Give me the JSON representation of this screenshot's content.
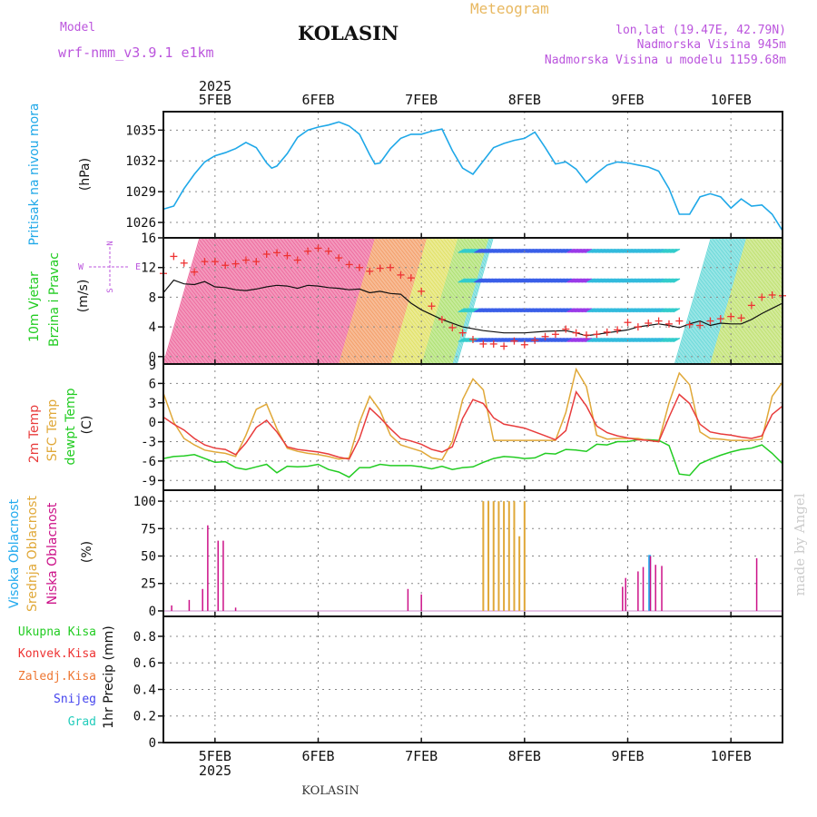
{
  "header": {
    "model_label": "Model",
    "model_value": "wrf-nmm_v3.9.1 e1km",
    "station": "KOLASIN",
    "meteogram": "Meteogram",
    "coords": "lon,lat (19.47E, 42.79N)",
    "elevation": "Nadmorska Visina 945m",
    "model_elevation": "Nadmorska Visina u modelu 1159.68m",
    "watermark": "made by Angel",
    "footer": "KOLASIN"
  },
  "colors": {
    "pressure": "#1fa8e8",
    "wind_speed": "#111111",
    "gust": "#ee3333",
    "temp_2m": "#e83c3c",
    "temp_sfc": "#e0a838",
    "dewpoint": "#22cc22",
    "high_cloud": "#22aaee",
    "mid_cloud": "#e0a838",
    "low_cloud": "#cc1188",
    "grid": "#888888",
    "label_purple": "#bb55dd",
    "label_orange": "#e8a838"
  },
  "time_axis": {
    "year": "2025",
    "labels": [
      "5FEB",
      "6FEB",
      "7FEB",
      "8FEB",
      "9FEB",
      "10FEB"
    ],
    "start_day": 4.5,
    "end_day": 10.5
  },
  "chart_data": [
    {
      "type": "line",
      "panel": "pressure",
      "ylabel": [
        "Pritisak na nivou mora",
        "(hPa)"
      ],
      "yticks": [
        1026,
        1029,
        1032,
        1035
      ],
      "ylim": [
        1024.5,
        1036.8
      ],
      "x": [
        4.5,
        4.6,
        4.7,
        4.8,
        4.9,
        5.0,
        5.1,
        5.2,
        5.3,
        5.4,
        5.5,
        5.55,
        5.6,
        5.7,
        5.8,
        5.9,
        6.0,
        6.1,
        6.2,
        6.3,
        6.4,
        6.5,
        6.55,
        6.6,
        6.7,
        6.8,
        6.9,
        7.0,
        7.1,
        7.2,
        7.3,
        7.4,
        7.5,
        7.6,
        7.7,
        7.8,
        7.9,
        8.0,
        8.1,
        8.2,
        8.3,
        8.4,
        8.5,
        8.6,
        8.7,
        8.8,
        8.9,
        9.0,
        9.1,
        9.2,
        9.3,
        9.4,
        9.5,
        9.6,
        9.7,
        9.8,
        9.9,
        10.0,
        10.1,
        10.2,
        10.3,
        10.4,
        10.5
      ],
      "y": [
        1027.3,
        1027.6,
        1029.3,
        1030.7,
        1031.9,
        1032.5,
        1032.8,
        1033.2,
        1033.8,
        1033.3,
        1031.8,
        1031.3,
        1031.5,
        1032.7,
        1034.3,
        1035.0,
        1035.3,
        1035.5,
        1035.8,
        1035.4,
        1034.6,
        1032.6,
        1031.7,
        1031.8,
        1033.2,
        1034.2,
        1034.6,
        1034.6,
        1034.9,
        1035.1,
        1033.0,
        1031.3,
        1030.7,
        1032.0,
        1033.3,
        1033.7,
        1034.0,
        1034.2,
        1034.8,
        1033.3,
        1031.7,
        1031.9,
        1031.2,
        1029.9,
        1030.8,
        1031.6,
        1031.9,
        1031.8,
        1031.6,
        1031.4,
        1031.0,
        1029.3,
        1026.8,
        1026.8,
        1028.5,
        1028.8,
        1028.5,
        1027.4,
        1028.3,
        1027.6,
        1027.7,
        1026.8,
        1025.2
      ]
    },
    {
      "type": "line",
      "panel": "wind",
      "ylabel": [
        "10m Vjetar",
        "Brzina i Pravac",
        "(m/s)"
      ],
      "yticks": [
        0,
        4,
        8,
        12,
        16
      ],
      "ylim": [
        -1,
        16
      ],
      "compass": [
        "N",
        "S",
        "E",
        "W"
      ],
      "series": [
        {
          "name": "speed",
          "x": [
            4.5,
            4.6,
            4.7,
            4.8,
            4.9,
            5.0,
            5.1,
            5.2,
            5.3,
            5.4,
            5.5,
            5.6,
            5.7,
            5.8,
            5.9,
            6.0,
            6.1,
            6.2,
            6.3,
            6.4,
            6.5,
            6.6,
            6.7,
            6.8,
            6.9,
            7.0,
            7.2,
            7.4,
            7.6,
            7.8,
            8.0,
            8.2,
            8.4,
            8.5,
            8.6,
            8.8,
            9.0,
            9.1,
            9.2,
            9.3,
            9.4,
            9.5,
            9.6,
            9.7,
            9.8,
            9.9,
            10.0,
            10.1,
            10.2,
            10.3,
            10.4,
            10.5
          ],
          "y": [
            8.6,
            10.3,
            9.8,
            9.7,
            10.1,
            9.4,
            9.3,
            9.0,
            8.9,
            9.1,
            9.4,
            9.6,
            9.5,
            9.2,
            9.6,
            9.5,
            9.3,
            9.2,
            9.0,
            9.1,
            8.6,
            8.8,
            8.5,
            8.4,
            7.2,
            6.3,
            5.0,
            4.0,
            3.5,
            3.2,
            3.2,
            3.4,
            3.5,
            3.2,
            2.8,
            3.2,
            3.6,
            4.0,
            4.2,
            4.4,
            4.2,
            3.9,
            4.4,
            4.8,
            4.2,
            4.5,
            4.4,
            4.4,
            5.0,
            5.8,
            6.5,
            7.2
          ]
        },
        {
          "name": "gust",
          "x": [
            4.5,
            4.6,
            4.7,
            4.8,
            4.9,
            5.0,
            5.1,
            5.2,
            5.3,
            5.4,
            5.5,
            5.6,
            5.7,
            5.8,
            5.9,
            6.0,
            6.1,
            6.2,
            6.3,
            6.4,
            6.5,
            6.6,
            6.7,
            6.8,
            6.9,
            7.0,
            7.1,
            7.2,
            7.3,
            7.4,
            7.5,
            7.6,
            7.7,
            7.8,
            7.9,
            8.0,
            8.1,
            8.2,
            8.3,
            8.4,
            8.5,
            8.6,
            8.7,
            8.8,
            8.9,
            9.0,
            9.1,
            9.2,
            9.3,
            9.4,
            9.5,
            9.6,
            9.7,
            9.8,
            9.9,
            10.0,
            10.1,
            10.2,
            10.3,
            10.4,
            10.5
          ],
          "y": [
            11.2,
            13.5,
            12.6,
            11.4,
            12.8,
            12.8,
            12.3,
            12.5,
            13.0,
            12.8,
            13.8,
            14.0,
            13.6,
            13.0,
            14.2,
            14.6,
            14.2,
            13.3,
            12.4,
            12.0,
            11.5,
            11.9,
            12.0,
            11.0,
            10.6,
            8.8,
            6.8,
            5.0,
            3.9,
            3.2,
            2.3,
            1.7,
            1.7,
            1.4,
            2.1,
            1.6,
            2.2,
            2.7,
            3.0,
            3.7,
            3.2,
            2.9,
            3.0,
            3.3,
            3.6,
            4.6,
            4.0,
            4.5,
            4.8,
            4.4,
            4.8,
            4.3,
            4.2,
            4.8,
            5.1,
            5.4,
            5.2,
            6.9,
            8.0,
            8.3,
            8.2
          ]
        }
      ]
    },
    {
      "type": "line",
      "panel": "temperature",
      "ylabel": [
        "2m Temp",
        "SFC Temp",
        "dewpt Temp",
        "(C)"
      ],
      "yticks": [
        -9,
        -6,
        -3,
        0,
        3,
        6,
        9
      ],
      "ylim": [
        -10.5,
        9
      ],
      "series": [
        {
          "name": "2m Temp",
          "x": [
            4.5,
            4.6,
            4.7,
            4.8,
            4.9,
            5.0,
            5.1,
            5.2,
            5.3,
            5.4,
            5.5,
            5.6,
            5.7,
            5.8,
            5.9,
            6.0,
            6.1,
            6.2,
            6.3,
            6.4,
            6.5,
            6.6,
            6.7,
            6.8,
            6.9,
            7.0,
            7.1,
            7.2,
            7.3,
            7.4,
            7.5,
            7.6,
            7.7,
            7.8,
            7.9,
            8.0,
            8.1,
            8.2,
            8.3,
            8.4,
            8.5,
            8.6,
            8.7,
            8.8,
            8.9,
            9.0,
            9.1,
            9.2,
            9.3,
            9.4,
            9.5,
            9.6,
            9.7,
            9.8,
            9.9,
            10.0,
            10.1,
            10.2,
            10.3,
            10.4,
            10.5
          ],
          "y": [
            0.8,
            -0.3,
            -1.2,
            -2.5,
            -3.5,
            -4.0,
            -4.2,
            -5.0,
            -3.2,
            -0.8,
            0.3,
            -1.5,
            -3.8,
            -4.2,
            -4.4,
            -4.6,
            -4.9,
            -5.4,
            -5.7,
            -2.5,
            2.2,
            0.7,
            -1.0,
            -2.5,
            -2.9,
            -3.4,
            -4.2,
            -4.6,
            -3.8,
            0.6,
            3.5,
            2.9,
            0.7,
            -0.3,
            -0.6,
            -0.9,
            -1.5,
            -2.1,
            -2.7,
            -1.3,
            4.7,
            2.5,
            -0.6,
            -1.6,
            -2.1,
            -2.4,
            -2.7,
            -2.8,
            -3.0,
            0.8,
            4.3,
            2.9,
            -0.3,
            -1.5,
            -1.8,
            -2.0,
            -2.3,
            -2.5,
            -2.1,
            1.2,
            2.5
          ]
        },
        {
          "name": "SFC Temp",
          "x": [
            4.5,
            4.6,
            4.7,
            4.8,
            4.9,
            5.0,
            5.1,
            5.2,
            5.3,
            5.4,
            5.5,
            5.6,
            5.7,
            5.8,
            5.9,
            6.0,
            6.1,
            6.2,
            6.3,
            6.4,
            6.5,
            6.6,
            6.7,
            6.8,
            6.9,
            7.0,
            7.1,
            7.2,
            7.3,
            7.4,
            7.5,
            7.6,
            7.7,
            7.8,
            7.9,
            8.0,
            8.1,
            8.2,
            8.3,
            8.4,
            8.5,
            8.6,
            8.7,
            8.8,
            8.9,
            9.0,
            9.1,
            9.2,
            9.3,
            9.4,
            9.5,
            9.6,
            9.7,
            9.8,
            9.9,
            10.0,
            10.1,
            10.2,
            10.3,
            10.4,
            10.5
          ],
          "y": [
            4.5,
            0.0,
            -2.5,
            -3.5,
            -4.3,
            -4.6,
            -4.8,
            -5.3,
            -2.0,
            2.0,
            2.8,
            -1.0,
            -4.0,
            -4.5,
            -4.8,
            -5.0,
            -5.3,
            -5.7,
            -5.5,
            0.0,
            4.0,
            1.8,
            -2.0,
            -3.5,
            -4.0,
            -4.5,
            -5.5,
            -5.8,
            -3.0,
            3.5,
            6.7,
            5.0,
            -2.8,
            -2.8,
            -2.8,
            -2.8,
            -2.8,
            -2.8,
            -2.8,
            1.5,
            8.2,
            5.5,
            -2.0,
            -2.6,
            -2.5,
            -2.5,
            -2.5,
            -2.8,
            -3.0,
            3.0,
            7.6,
            5.8,
            -1.5,
            -2.5,
            -2.6,
            -2.8,
            -2.8,
            -2.8,
            -2.6,
            4.0,
            6.2
          ]
        },
        {
          "name": "dewpt Temp",
          "x": [
            4.5,
            4.6,
            4.7,
            4.8,
            4.9,
            5.0,
            5.1,
            5.2,
            5.3,
            5.4,
            5.5,
            5.6,
            5.7,
            5.8,
            5.9,
            6.0,
            6.1,
            6.2,
            6.3,
            6.4,
            6.5,
            6.6,
            6.7,
            6.8,
            6.9,
            7.0,
            7.1,
            7.2,
            7.3,
            7.4,
            7.5,
            7.6,
            7.7,
            7.8,
            7.9,
            8.0,
            8.1,
            8.2,
            8.3,
            8.4,
            8.5,
            8.6,
            8.7,
            8.8,
            8.9,
            9.0,
            9.1,
            9.2,
            9.3,
            9.4,
            9.5,
            9.6,
            9.7,
            9.8,
            9.9,
            10.0,
            10.1,
            10.2,
            10.3,
            10.4,
            10.5
          ],
          "y": [
            -5.6,
            -5.3,
            -5.2,
            -5.0,
            -5.6,
            -6.2,
            -6.1,
            -7.0,
            -7.3,
            -6.9,
            -6.5,
            -7.8,
            -6.8,
            -6.9,
            -6.8,
            -6.5,
            -7.3,
            -7.7,
            -8.5,
            -7.0,
            -7.0,
            -6.5,
            -6.7,
            -6.7,
            -6.7,
            -6.9,
            -7.2,
            -6.8,
            -7.3,
            -7.0,
            -6.9,
            -6.2,
            -5.6,
            -5.3,
            -5.4,
            -5.6,
            -5.5,
            -4.8,
            -4.9,
            -4.2,
            -4.3,
            -4.5,
            -3.4,
            -3.5,
            -3.0,
            -3.0,
            -2.7,
            -2.7,
            -2.8,
            -3.6,
            -8.0,
            -8.2,
            -6.4,
            -5.7,
            -5.1,
            -4.6,
            -4.2,
            -4.0,
            -3.5,
            -4.8,
            -6.4
          ]
        }
      ]
    },
    {
      "type": "bar",
      "panel": "clouds",
      "ylabel": [
        "Visoka Oblacnost",
        "Srednja Oblacnost",
        "Niska Oblacnost",
        "(%)"
      ],
      "yticks": [
        0,
        25,
        50,
        75,
        100
      ],
      "ylim": [
        -5,
        110
      ],
      "series": [
        {
          "name": "Visoka Oblacnost",
          "x": [
            9.23
          ],
          "values": [
            51
          ]
        },
        {
          "name": "Srednja Oblacnost",
          "x": [
            7.6,
            7.65,
            7.7,
            7.75,
            7.8,
            7.85,
            7.9,
            7.95,
            8.0
          ],
          "values": [
            100,
            100,
            100,
            100,
            100,
            100,
            100,
            68,
            100
          ]
        },
        {
          "name": "Niska Oblacnost",
          "x": [
            4.58,
            4.75,
            4.88,
            4.93,
            5.03,
            5.08,
            5.2,
            6.87,
            7.0,
            8.95,
            8.98,
            9.1,
            9.15,
            9.22,
            9.27,
            9.33,
            10.25
          ],
          "values": [
            5,
            10,
            20,
            78,
            64,
            64,
            3,
            20,
            15,
            22,
            30,
            36,
            40,
            50,
            42,
            41,
            48
          ]
        }
      ]
    },
    {
      "type": "bar",
      "panel": "precip",
      "ylabel": [
        "1hr Precip (mm)"
      ],
      "legend": [
        "Ukupna Kisa",
        "Konvek.Kisa",
        "Zaledj.Kisa",
        "Snijeg",
        "Grad"
      ],
      "legend_colors": [
        "#22cc22",
        "#ee3333",
        "#ee7733",
        "#4444ee",
        "#22ccbb"
      ],
      "yticks": [
        "0",
        "0.2",
        "0.4",
        "0.6",
        "0.8"
      ],
      "ylim": [
        0,
        0.95
      ],
      "values": []
    }
  ]
}
